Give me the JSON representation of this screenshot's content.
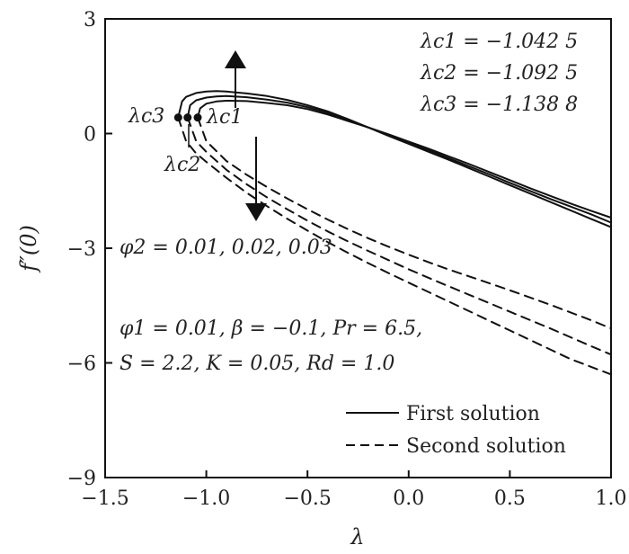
{
  "chart_data": {
    "type": "line",
    "xlabel": "λ",
    "ylabel": "f″(0)",
    "xlim": [
      -1.5,
      1.0
    ],
    "ylim": [
      -9,
      3
    ],
    "xticks": [
      -1.5,
      -1.0,
      -0.5,
      0.0,
      0.5,
      1.0
    ],
    "xtick_labels": [
      "−1.5",
      "−1.0",
      "−0.5",
      "0.0",
      "0.5",
      "1.0"
    ],
    "yticks": [
      3,
      0,
      -3,
      -6,
      -9
    ],
    "ytick_labels": [
      "3",
      "0",
      "−3",
      "−6",
      "−9"
    ],
    "grid": false,
    "legend_position": "bottom-right",
    "legend": [
      {
        "label": "First solution",
        "style": "solid"
      },
      {
        "label": "Second solution",
        "style": "dashed"
      }
    ],
    "critical_values": [
      {
        "label": "λc1",
        "value_text": "λc1 = −1.042 5",
        "lambda": -1.0425,
        "f": 0.42
      },
      {
        "label": "λc2",
        "value_text": "λc2 = −1.092 5",
        "lambda": -1.0925,
        "f": 0.42
      },
      {
        "label": "λc3",
        "value_text": "λc3 = −1.138 8",
        "lambda": -1.1388,
        "f": 0.42
      }
    ],
    "series": [
      {
        "style": "solid",
        "x": [
          -1.0425,
          -1.03,
          -1.0,
          -0.95,
          -0.9,
          -0.8,
          -0.7,
          -0.6,
          -0.5,
          -0.4,
          -0.3,
          -0.2,
          -0.1,
          0.0,
          0.1,
          0.2,
          0.3,
          0.4,
          0.5,
          0.6,
          0.7,
          0.8,
          0.9,
          1.0
        ],
        "y": [
          0.42,
          0.66,
          0.78,
          0.84,
          0.86,
          0.85,
          0.8,
          0.74,
          0.64,
          0.5,
          0.33,
          0.16,
          -0.02,
          -0.21,
          -0.4,
          -0.6,
          -0.8,
          -1.01,
          -1.22,
          -1.43,
          -1.63,
          -1.83,
          -2.02,
          -2.2
        ]
      },
      {
        "style": "solid",
        "x": [
          -1.0925,
          -1.08,
          -1.05,
          -1.0,
          -0.95,
          -0.9,
          -0.8,
          -0.7,
          -0.6,
          -0.5,
          -0.4,
          -0.3,
          -0.2,
          -0.1,
          0.0,
          0.1,
          0.2,
          0.3,
          0.4,
          0.5,
          0.6,
          0.7,
          0.8,
          0.9,
          1.0
        ],
        "y": [
          0.42,
          0.74,
          0.87,
          0.94,
          0.97,
          0.98,
          0.95,
          0.89,
          0.81,
          0.69,
          0.54,
          0.35,
          0.16,
          -0.04,
          -0.24,
          -0.44,
          -0.65,
          -0.86,
          -1.07,
          -1.29,
          -1.5,
          -1.71,
          -1.91,
          -2.11,
          -2.33
        ]
      },
      {
        "style": "solid",
        "x": [
          -1.1388,
          -1.12,
          -1.1,
          -1.05,
          -1.0,
          -0.95,
          -0.9,
          -0.8,
          -0.7,
          -0.6,
          -0.5,
          -0.4,
          -0.3,
          -0.2,
          -0.1,
          0.0,
          0.1,
          0.2,
          0.3,
          0.4,
          0.5,
          0.6,
          0.7,
          0.8,
          0.9,
          1.0
        ],
        "y": [
          0.42,
          0.84,
          0.96,
          1.06,
          1.1,
          1.11,
          1.1,
          1.05,
          0.98,
          0.88,
          0.74,
          0.58,
          0.38,
          0.16,
          -0.06,
          -0.27,
          -0.48,
          -0.69,
          -0.91,
          -1.13,
          -1.35,
          -1.57,
          -1.79,
          -2.01,
          -2.23,
          -2.45
        ]
      },
      {
        "style": "dashed",
        "x": [
          -1.0425,
          -1.0,
          -0.9,
          -0.8,
          -0.7,
          -0.6,
          -0.5,
          -0.4,
          -0.3,
          -0.2,
          -0.1,
          0.0,
          0.1,
          0.2,
          0.3,
          0.4,
          0.5,
          0.6,
          0.7,
          0.8,
          0.9,
          1.0
        ],
        "y": [
          0.42,
          -0.2,
          -0.72,
          -1.08,
          -1.4,
          -1.7,
          -1.98,
          -2.25,
          -2.5,
          -2.74,
          -2.96,
          -3.17,
          -3.37,
          -3.56,
          -3.74,
          -3.92,
          -4.1,
          -4.29,
          -4.48,
          -4.68,
          -4.88,
          -5.1
        ]
      },
      {
        "style": "dashed",
        "x": [
          -1.0925,
          -1.05,
          -1.0,
          -0.9,
          -0.8,
          -0.7,
          -0.6,
          -0.5,
          -0.4,
          -0.3,
          -0.2,
          -0.1,
          0.0,
          0.1,
          0.2,
          0.3,
          0.4,
          0.5,
          0.6,
          0.7,
          0.8,
          0.9,
          1.0
        ],
        "y": [
          0.42,
          -0.2,
          -0.48,
          -0.95,
          -1.33,
          -1.67,
          -1.98,
          -2.28,
          -2.56,
          -2.82,
          -3.07,
          -3.31,
          -3.55,
          -3.78,
          -4.0,
          -4.22,
          -4.44,
          -4.66,
          -4.88,
          -5.1,
          -5.33,
          -5.56,
          -5.78
        ]
      },
      {
        "style": "dashed",
        "x": [
          -1.1388,
          -1.1,
          -1.05,
          -1.0,
          -0.9,
          -0.8,
          -0.7,
          -0.6,
          -0.5,
          -0.4,
          -0.3,
          -0.2,
          -0.1,
          0.0,
          0.1,
          0.2,
          0.3,
          0.4,
          0.5,
          0.6,
          0.7,
          0.8,
          0.9,
          1.0
        ],
        "y": [
          0.42,
          -0.2,
          -0.52,
          -0.74,
          -1.16,
          -1.55,
          -1.9,
          -2.23,
          -2.54,
          -2.84,
          -3.12,
          -3.39,
          -3.65,
          -3.9,
          -4.15,
          -4.4,
          -4.65,
          -4.9,
          -5.15,
          -5.4,
          -5.65,
          -5.9,
          -6.1,
          -6.3
        ]
      }
    ],
    "annotations": {
      "phi2": "φ2 = 0.01, 0.02, 0.03",
      "params_line1": "φ1 = 0.01, β = −0.1, Pr = 6.5,",
      "params_line2": "S = 2.2, K = 0.05, Rd = 1.0"
    }
  }
}
